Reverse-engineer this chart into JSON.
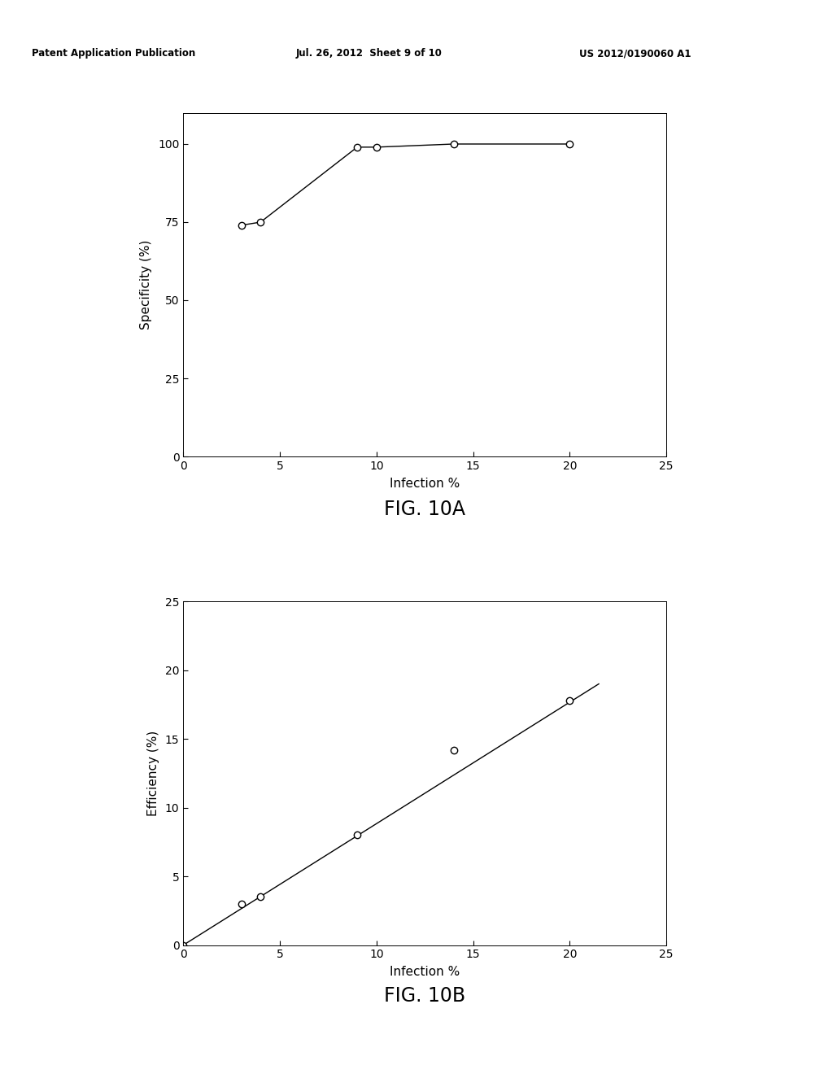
{
  "header_left": "Patent Application Publication",
  "header_center": "Jul. 26, 2012  Sheet 9 of 10",
  "header_right": "US 2012/0190060 A1",
  "fig10a": {
    "title": "FIG. 10A",
    "xlabel": "Infection %",
    "ylabel": "Specificity (%)",
    "x_data": [
      3,
      4,
      9,
      10,
      14,
      20
    ],
    "y_data": [
      74,
      75,
      99,
      99,
      100,
      100
    ],
    "xlim": [
      0,
      25
    ],
    "ylim": [
      0,
      110
    ],
    "xticks": [
      0,
      5,
      10,
      15,
      20,
      25
    ],
    "yticks": [
      0,
      25,
      50,
      75,
      100
    ]
  },
  "fig10b": {
    "title": "FIG. 10B",
    "xlabel": "Infection %",
    "ylabel": "Efficiency (%)",
    "scatter_x": [
      0,
      3,
      4,
      9,
      14,
      20
    ],
    "scatter_y": [
      0,
      3.0,
      3.5,
      8.0,
      14.2,
      17.8
    ],
    "line_x": [
      0,
      21.5
    ],
    "line_y": [
      0,
      19.0
    ],
    "xlim": [
      0,
      25
    ],
    "ylim": [
      0,
      25
    ],
    "xticks": [
      0,
      5,
      10,
      15,
      20,
      25
    ],
    "yticks": [
      0,
      5,
      10,
      15,
      20,
      25
    ]
  },
  "bg_color": "#ffffff",
  "text_color": "#000000",
  "line_color": "#000000",
  "marker_color": "#ffffff",
  "marker_edge_color": "#000000"
}
